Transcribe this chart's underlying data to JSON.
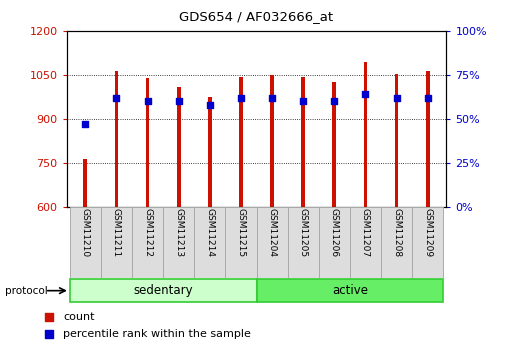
{
  "title": "GDS654 / AF032666_at",
  "samples": [
    "GSM11210",
    "GSM11211",
    "GSM11212",
    "GSM11213",
    "GSM11214",
    "GSM11215",
    "GSM11204",
    "GSM11205",
    "GSM11206",
    "GSM11207",
    "GSM11208",
    "GSM11209"
  ],
  "count_values": [
    762,
    1063,
    1040,
    1010,
    975,
    1042,
    1050,
    1042,
    1025,
    1093,
    1055,
    1065
  ],
  "percentile_values": [
    47,
    62,
    60,
    60,
    58,
    62,
    62,
    60,
    60,
    64,
    62,
    62
  ],
  "ylim_left": [
    600,
    1200
  ],
  "ylim_right": [
    0,
    100
  ],
  "yticks_left": [
    600,
    750,
    900,
    1050,
    1200
  ],
  "yticks_right": [
    0,
    25,
    50,
    75,
    100
  ],
  "ytick_labels_right": [
    "0%",
    "25%",
    "50%",
    "75%",
    "100%"
  ],
  "bar_color": "#cc1100",
  "dot_color": "#0000cc",
  "bar_width": 0.12,
  "sedentary_color": "#ccffcc",
  "active_color": "#66ee66",
  "group_border_color": "#33cc33",
  "protocol_label": "protocol",
  "legend_count_label": "count",
  "legend_percentile_label": "percentile rank within the sample",
  "tick_label_color_left": "#cc1100",
  "tick_label_color_right": "#0000cc",
  "label_bg_color": "#dddddd",
  "label_border_color": "#aaaaaa"
}
